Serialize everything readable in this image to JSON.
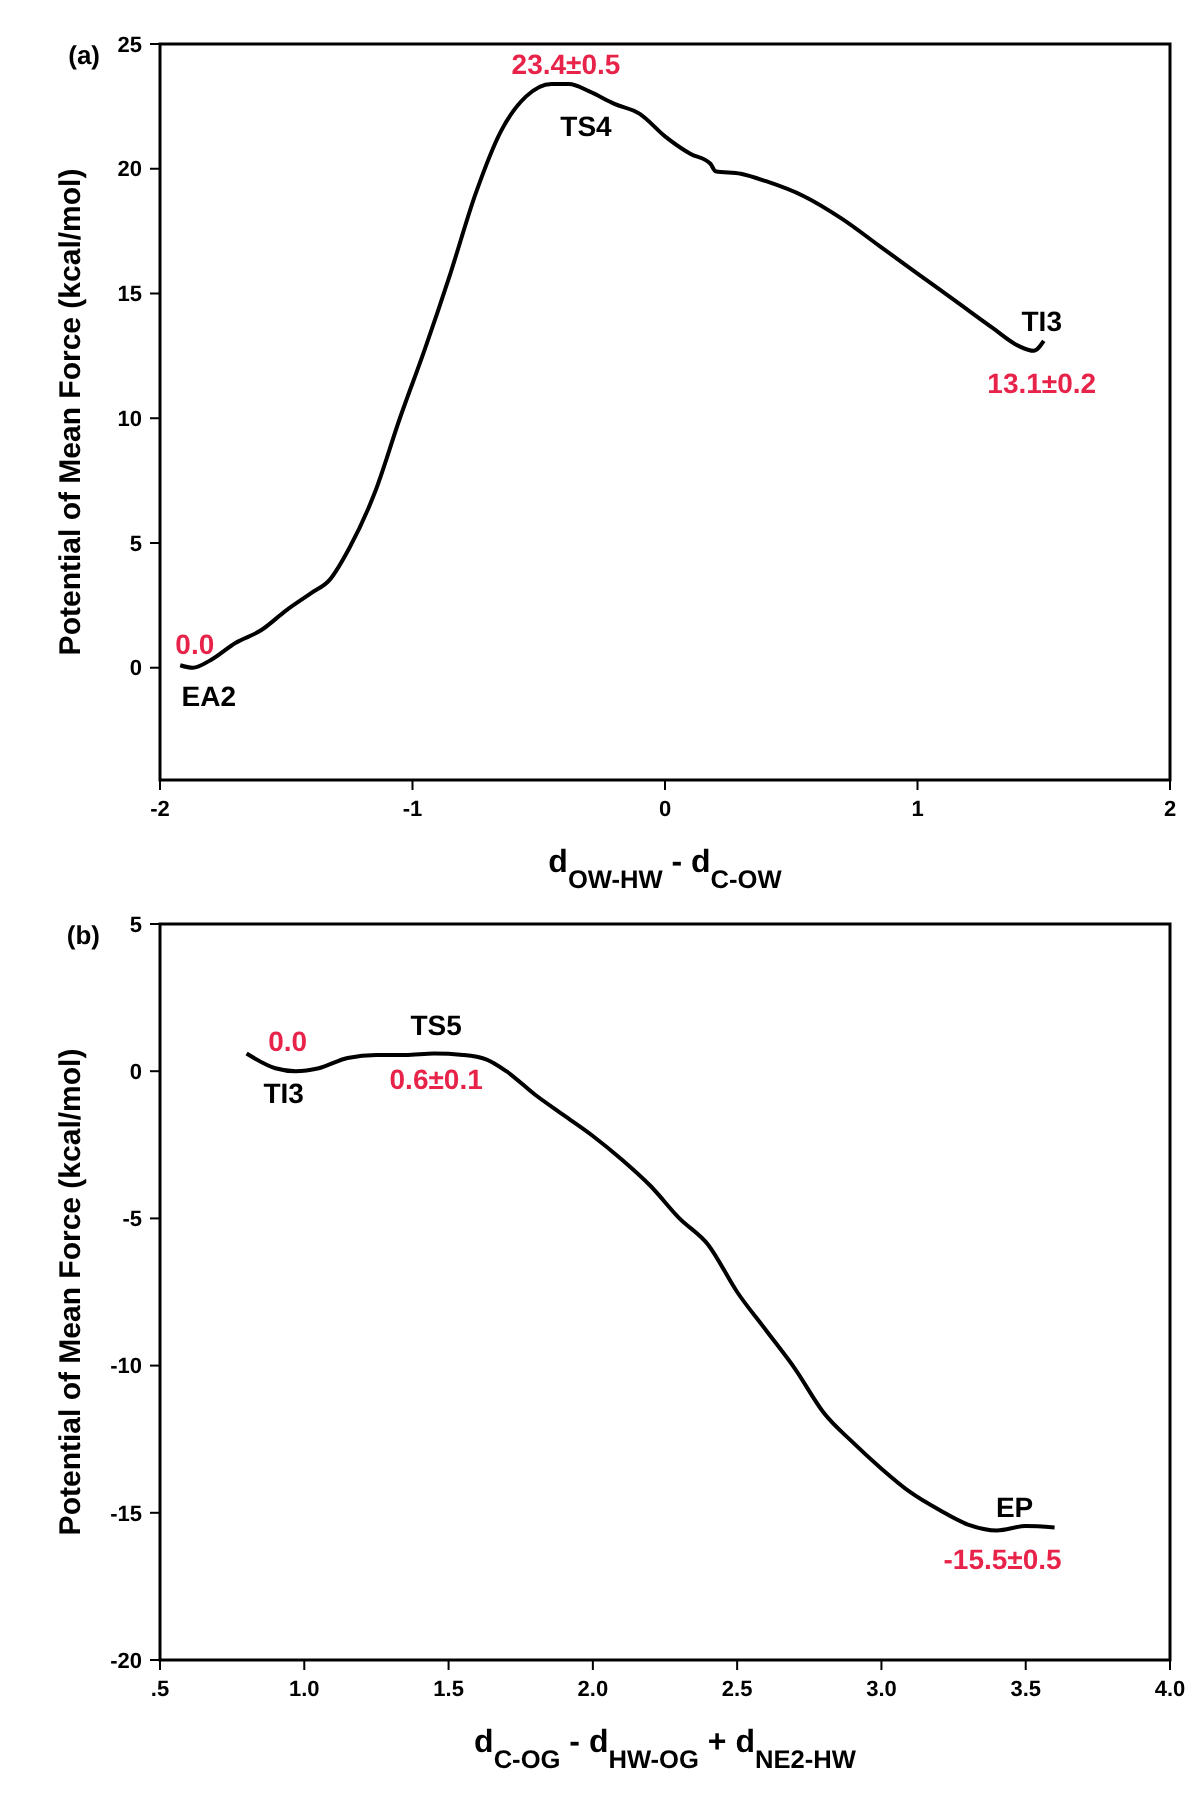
{
  "chart_data": [
    {
      "type": "line",
      "title": "(a)",
      "xlabel": "d$_{OW-HW}$ - d$_{C-OW}$",
      "ylabel": "Potential of Mean Force (kcal/mol)",
      "xlim": [
        -2,
        2
      ],
      "xticks": [
        -2,
        -1,
        0,
        1,
        2
      ],
      "ylim": [
        -4.5,
        25
      ],
      "yticks": [
        0,
        5,
        10,
        15,
        20,
        25
      ],
      "x": [
        -1.92,
        -1.87,
        -1.8,
        -1.7,
        -1.6,
        -1.5,
        -1.4,
        -1.33,
        -1.25,
        -1.15,
        -1.05,
        -0.95,
        -0.85,
        -0.75,
        -0.65,
        -0.55,
        -0.45,
        -0.38,
        -0.3,
        -0.2,
        -0.1,
        0,
        0.1,
        0.18,
        0.2,
        0.3,
        0.4,
        0.55,
        0.7,
        0.85,
        1.0,
        1.15,
        1.3,
        1.4,
        1.46,
        1.5
      ],
      "series": [
        {
          "color": "#000000",
          "values": [
            0.1,
            0.0,
            0.3,
            1.0,
            1.5,
            2.3,
            3.0,
            3.5,
            4.8,
            7.0,
            10.0,
            12.8,
            15.8,
            19.0,
            21.5,
            22.9,
            23.4,
            23.4,
            23.1,
            22.6,
            22.2,
            21.3,
            20.6,
            20.2,
            19.9,
            19.8,
            19.5,
            18.9,
            18.0,
            16.9,
            15.8,
            14.7,
            13.6,
            12.9,
            12.7,
            13.1
          ]
        }
      ],
      "annotations": [
        {
          "text": "0.0",
          "x": -1.87,
          "y": 0.0
        },
        {
          "text": "EA2",
          "x": -1.87,
          "y": 0.0
        },
        {
          "text": "23.4±0.5",
          "x": -0.4,
          "y": 23.4
        },
        {
          "text": "TS4",
          "x": -0.4,
          "y": 23.4
        },
        {
          "text": "13.1±0.2",
          "x": 1.5,
          "y": 13.1
        },
        {
          "text": "TI3",
          "x": 1.5,
          "y": 13.1
        }
      ]
    },
    {
      "type": "line",
      "title": "(b)",
      "xlabel": "d$_{C-OG}$ - d$_{HW-OG}$ + d$_{NE2-HW}$",
      "ylabel": "Potential of Mean Force (kcal/mol)",
      "xlim": [
        0.5,
        4
      ],
      "xticks": [
        {
          "value": 0.5,
          "label": ".5"
        },
        {
          "value": 1,
          "label": "1.0"
        },
        {
          "value": 1.5,
          "label": "1.5"
        },
        {
          "value": 2,
          "label": "2.0"
        },
        {
          "value": 2.5,
          "label": "2.5"
        },
        {
          "value": 3,
          "label": "3.0"
        },
        {
          "value": 3.5,
          "label": "3.5"
        },
        {
          "value": 4,
          "label": "4.0"
        }
      ],
      "ylim": [
        -20,
        5
      ],
      "yticks": [
        -20,
        -15,
        -10,
        -5,
        0,
        5
      ],
      "x": [
        0.8,
        0.9,
        0.97,
        1.05,
        1.15,
        1.25,
        1.35,
        1.45,
        1.55,
        1.63,
        1.7,
        1.8,
        1.9,
        2.0,
        2.1,
        2.2,
        2.3,
        2.4,
        2.5,
        2.6,
        2.7,
        2.8,
        2.9,
        3.0,
        3.1,
        3.2,
        3.3,
        3.4,
        3.5,
        3.6
      ],
      "series": [
        {
          "color": "#000000",
          "values": [
            0.6,
            0.1,
            0.0,
            0.1,
            0.45,
            0.55,
            0.55,
            0.6,
            0.55,
            0.4,
            0.0,
            -0.8,
            -1.5,
            -2.2,
            -3.0,
            -3.9,
            -5.0,
            -5.9,
            -7.5,
            -8.8,
            -10.1,
            -11.6,
            -12.6,
            -13.5,
            -14.3,
            -14.9,
            -15.4,
            -15.6,
            -15.45,
            -15.5
          ]
        }
      ],
      "annotations": [
        {
          "text": "0.0",
          "x": 0.97,
          "y": 0.0
        },
        {
          "text": "TI3",
          "x": 0.97,
          "y": 0.0
        },
        {
          "text": "0.6±0.1",
          "x": 1.45,
          "y": 0.6
        },
        {
          "text": "TS5",
          "x": 1.45,
          "y": 0.6
        },
        {
          "text": "-15.5±0.5",
          "x": 3.6,
          "y": -15.5
        },
        {
          "text": "EP",
          "x": 3.6,
          "y": -15.5
        }
      ]
    }
  ]
}
